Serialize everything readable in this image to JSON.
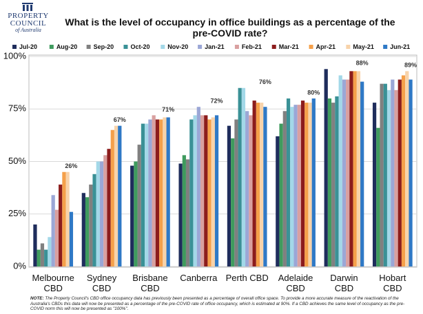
{
  "logo": {
    "line1": "PROPERTY",
    "line2": "COUNCIL",
    "line3": "of Australia"
  },
  "chart_data": {
    "type": "bar",
    "title": "What is the level of occupancy in office buildings as a percentage of the pre-COVID rate?",
    "categories": [
      "Melbourne\nCBD",
      "Sydney\nCBD",
      "Brisbane\nCBD",
      "Canberra",
      "Perth CBD",
      "Adelaide\nCBD",
      "Darwin\nCBD",
      "Hobart\nCBD"
    ],
    "series": [
      {
        "name": "Jul-20",
        "color": "#1f2d5c",
        "values": [
          20,
          35,
          48,
          49,
          67,
          62,
          94,
          78
        ]
      },
      {
        "name": "Aug-20",
        "color": "#3f9b5e",
        "values": [
          8,
          33,
          50,
          53,
          61,
          68,
          80,
          66
        ]
      },
      {
        "name": "Sep-20",
        "color": "#808080",
        "values": [
          11,
          39,
          58,
          51,
          70,
          74,
          78,
          87
        ]
      },
      {
        "name": "Oct-20",
        "color": "#3a9196",
        "values": [
          8,
          44,
          68,
          70,
          85,
          80,
          81,
          87
        ]
      },
      {
        "name": "Nov-20",
        "color": "#a3d8e8",
        "values": [
          14,
          50,
          68,
          72,
          85,
          76,
          91,
          84
        ]
      },
      {
        "name": "Jan-21",
        "color": "#9ba7d6",
        "values": [
          34,
          50,
          70,
          76,
          74,
          77,
          89,
          89
        ]
      },
      {
        "name": "Feb-21",
        "color": "#d9a0a0",
        "values": [
          27,
          53,
          72,
          72,
          72,
          77,
          89,
          84
        ]
      },
      {
        "name": "Mar-21",
        "color": "#8c1c1c",
        "values": [
          39,
          56,
          70,
          72,
          79,
          79,
          93,
          89
        ]
      },
      {
        "name": "Apr-21",
        "color": "#f5a04a",
        "values": [
          45,
          65,
          70,
          70,
          78,
          78,
          93,
          91
        ]
      },
      {
        "name": "May-21",
        "color": "#f8d3aa",
        "values": [
          45,
          67,
          71,
          71,
          78,
          78,
          93,
          93
        ]
      },
      {
        "name": "Jun-21",
        "color": "#2f79c6",
        "values": [
          26,
          67,
          71,
          72,
          76,
          80,
          88,
          89
        ],
        "value_labels": [
          "26%",
          "67%",
          "71%",
          "72%",
          "76%",
          "80%",
          "88%",
          "89%"
        ]
      }
    ],
    "ylim": [
      0,
      100
    ],
    "yticks": [
      {
        "value": 0,
        "label": "0%"
      },
      {
        "value": 25,
        "label": "25%"
      },
      {
        "value": 50,
        "label": "50%"
      },
      {
        "value": 75,
        "label": "75%"
      },
      {
        "value": 100,
        "label": "100%"
      }
    ],
    "grid": true,
    "legend": "top",
    "note_label": "NOTE:",
    "note": "The Property Council's CBD office occupancy data has previously been presented as a percentage of overall office space. To provide a more accurate measure of the reactivation of the Australia's CBDs this data will now be presented as a percentage of the pre-COVID rate of office occupancy, which is estimated at 90%. If a CBD achieves the same level of occupancy as the pre-COVID norm this will now be presented as \"100%\"."
  }
}
